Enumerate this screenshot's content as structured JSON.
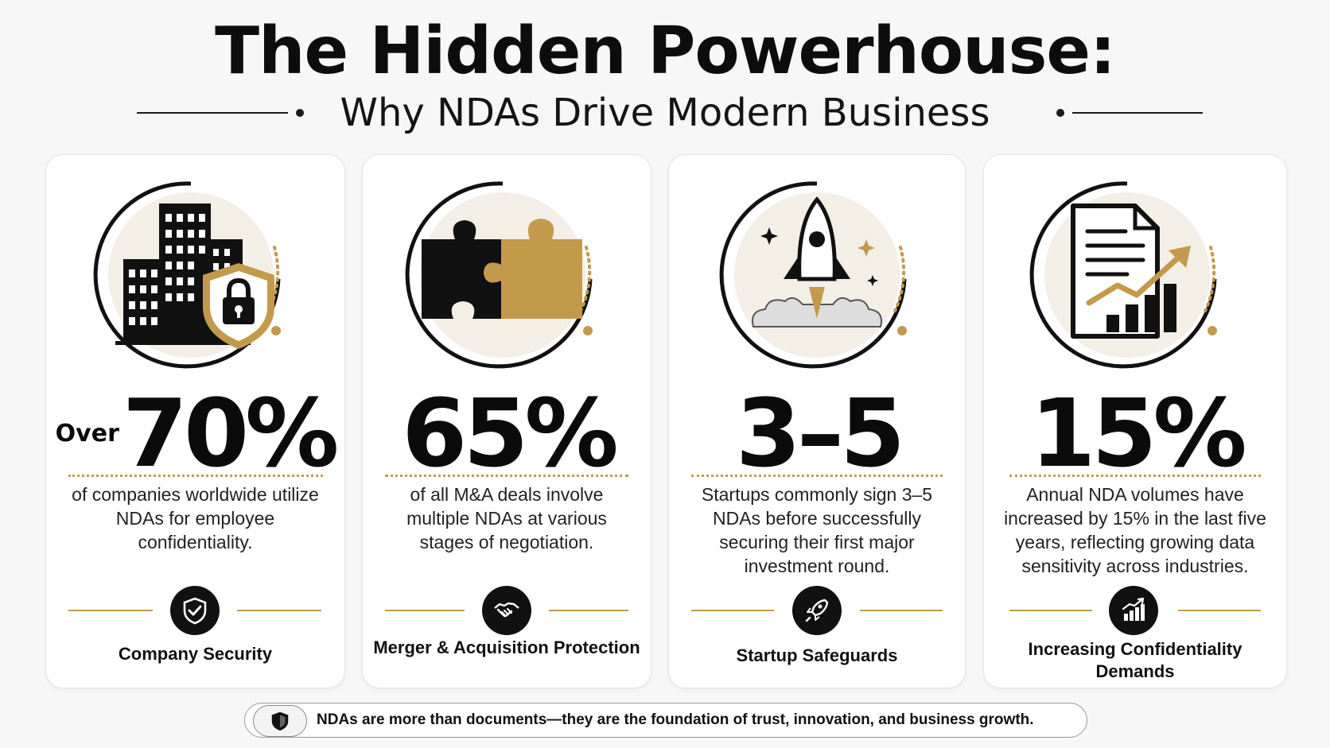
{
  "title": "The Hidden Powerhouse:",
  "subtitle": "Why NDAs Drive Modern Business",
  "colors": {
    "gold": "#c39a4b",
    "dark": "#111111",
    "card_bg": "#ffffff",
    "icon_bg": "#f3eee6"
  },
  "cards": [
    {
      "icon": "secure-building-icon",
      "stat_prefix": "Over",
      "stat": "70%",
      "description": "of companies worldwide utilize NDAs for employee confidentiality.",
      "badge_icon": "shield-check-icon",
      "label": "Company Security"
    },
    {
      "icon": "puzzle-pieces-icon",
      "stat_prefix": "",
      "stat": "65%",
      "description": "of all M&A deals involve multiple NDAs at various stages of negotiation.",
      "badge_icon": "handshake-icon",
      "label": "Merger & Acquisition Protection"
    },
    {
      "icon": "rocket-launch-icon",
      "stat_prefix": "",
      "stat": "3–5",
      "description": "Startups commonly sign 3–5 NDAs before successfully securing their first major investment round.",
      "badge_icon": "rocket-icon",
      "label": "Startup Safeguards"
    },
    {
      "icon": "document-growth-icon",
      "stat_prefix": "",
      "stat": "15%",
      "description": "Annual NDA volumes have increased by 15% in the last five years, reflecting growing data sensitivity across industries.",
      "badge_icon": "growth-chart-icon",
      "label": "Increasing Confidentiality Demands"
    }
  ],
  "footer": {
    "icon": "shield-icon",
    "text": "NDAs are more than documents—they are the foundation of trust, innovation, and business growth."
  }
}
